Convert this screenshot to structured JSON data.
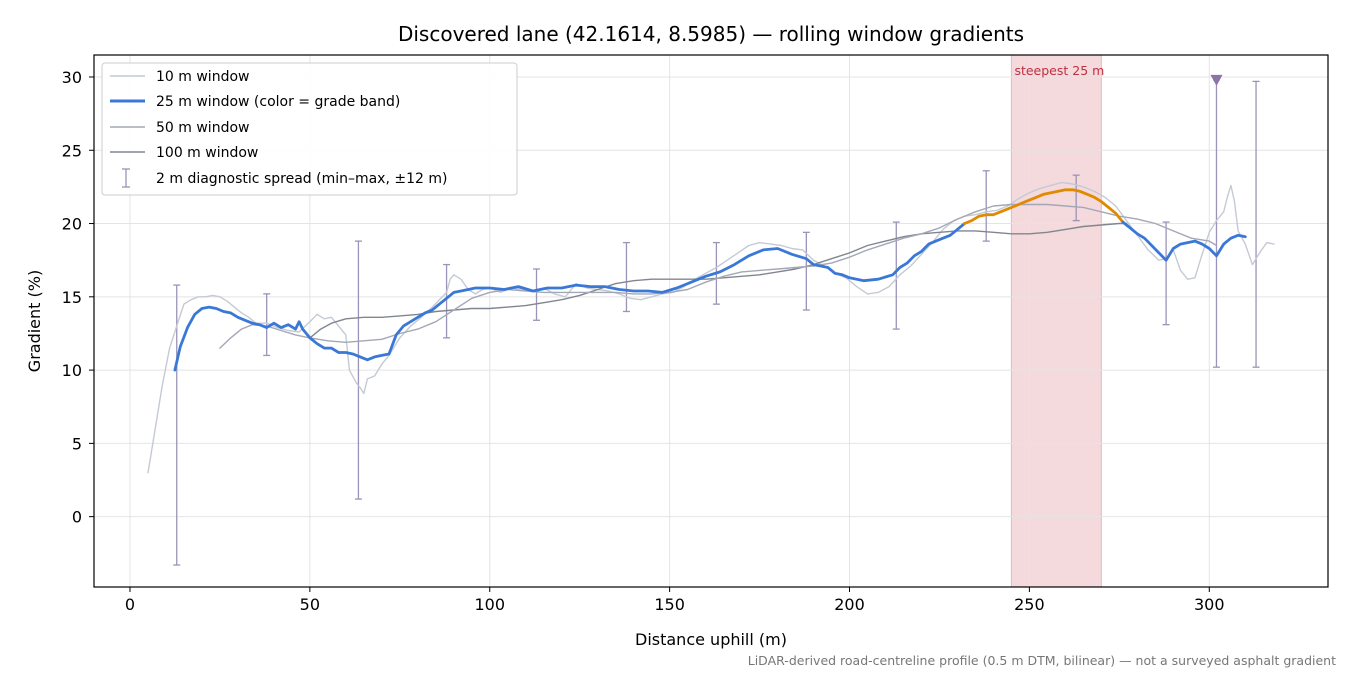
{
  "chart_data": {
    "type": "line",
    "title": "Discovered lane (42.1614, 8.5985) — rolling window gradients",
    "xlabel": "Distance uphill (m)",
    "ylabel": "Gradient (%)",
    "footnote": "LiDAR-derived road-centreline profile (0.5 m DTM, bilinear) — not a surveyed asphalt gradient",
    "xlim": [
      -10,
      333
    ],
    "ylim": [
      -4.8,
      31.5
    ],
    "x_ticks": [
      0,
      50,
      100,
      150,
      200,
      250,
      300
    ],
    "y_ticks": [
      0,
      5,
      10,
      15,
      20,
      25,
      30
    ],
    "grid": true,
    "legend_position": "upper-left",
    "steepest_band": {
      "label": "steepest 25 m",
      "x_start": 245,
      "x_end": 270
    },
    "marker_triangle": {
      "x": 302,
      "y": 29.8
    },
    "colors": {
      "w10": "#c4cad4",
      "w25": "#3a78d8",
      "w25_steep": "#e08a00",
      "w50": "#a4a8b6",
      "w100": "#808690",
      "err": "#9b93b8",
      "band": "#f4d9dd",
      "marker": "#8c75a6"
    },
    "series": [
      {
        "name": "10 m window",
        "x": [
          5,
          7,
          9,
          11,
          13,
          15,
          17,
          19,
          21,
          23,
          25,
          27,
          29,
          31,
          33,
          35,
          38,
          41,
          44,
          47,
          50,
          52,
          54,
          56,
          58,
          60,
          61,
          63,
          64,
          65,
          66,
          68,
          70,
          72,
          75,
          78,
          81,
          84,
          86,
          88,
          89,
          90,
          92,
          94,
          96,
          98,
          100,
          103,
          106,
          109,
          112,
          115,
          118,
          121,
          124,
          127,
          130,
          133,
          136,
          139,
          142,
          145,
          148,
          151,
          154,
          157,
          160,
          163,
          166,
          169,
          172,
          175,
          178,
          181,
          184,
          187,
          190,
          193,
          196,
          199,
          202,
          205,
          208,
          211,
          214,
          217,
          220,
          223,
          226,
          229,
          232,
          235,
          238,
          241,
          244,
          247,
          250,
          253,
          256,
          259,
          262,
          265,
          268,
          271,
          274,
          277,
          280,
          283,
          286,
          288,
          290,
          292,
          294,
          296,
          298,
          300,
          302,
          304,
          305,
          306,
          307,
          308,
          310,
          312,
          314,
          316,
          318
        ],
        "y": [
          3,
          6,
          9,
          11.5,
          13,
          14.5,
          14.8,
          15,
          15,
          15.1,
          15,
          14.7,
          14.3,
          13.9,
          13.6,
          13.2,
          13.2,
          12.9,
          12.7,
          12.6,
          13.3,
          13.8,
          13.5,
          13.6,
          13.0,
          12.4,
          10.0,
          9.1,
          8.8,
          8.4,
          9.4,
          9.6,
          10.4,
          11.0,
          12.2,
          13.0,
          13.6,
          14.3,
          14.8,
          15.3,
          16.2,
          16.5,
          16.2,
          15.5,
          15.2,
          15.5,
          15.6,
          15.3,
          15.6,
          15.5,
          15.4,
          15.6,
          15.2,
          15.0,
          15.9,
          15.6,
          15.5,
          15.4,
          15.2,
          14.9,
          14.8,
          15.0,
          15.2,
          15.3,
          15.7,
          16.2,
          16.6,
          17.0,
          17.5,
          18.0,
          18.5,
          18.7,
          18.6,
          18.5,
          18.3,
          18.2,
          17.5,
          17.1,
          16.6,
          16.3,
          15.7,
          15.2,
          15.3,
          15.7,
          16.5,
          17.1,
          17.9,
          18.7,
          19.6,
          20.2,
          20.5,
          20.6,
          20.8,
          20.9,
          21.2,
          21.7,
          22.1,
          22.4,
          22.6,
          22.8,
          22.7,
          22.5,
          22.2,
          21.8,
          21.2,
          20.2,
          19.2,
          18.2,
          17.5,
          17.6,
          18.2,
          16.8,
          16.2,
          16.3,
          17.9,
          19.4,
          20.2,
          20.8,
          21.8,
          22.6,
          21.5,
          19.5,
          18.6,
          17.2,
          18.0,
          18.7,
          18.6
        ]
      },
      {
        "name": "25 m window (color = grade band)",
        "x": [
          12.5,
          14,
          16,
          18,
          20,
          22,
          24,
          26,
          28,
          30,
          32,
          34,
          36,
          38,
          40,
          42,
          44,
          46,
          47,
          48,
          50,
          52,
          54,
          56,
          58,
          60,
          62,
          64,
          66,
          68,
          70,
          72,
          74,
          76,
          78,
          80,
          82,
          84,
          86,
          88,
          90,
          92,
          94,
          96,
          98,
          100,
          104,
          108,
          112,
          116,
          120,
          124,
          128,
          132,
          136,
          140,
          144,
          148,
          152,
          156,
          160,
          164,
          168,
          172,
          176,
          180,
          184,
          188,
          190,
          192,
          194,
          196,
          198,
          200,
          204,
          208,
          212,
          214,
          216,
          218,
          220,
          222,
          224,
          226,
          228,
          230,
          232
        ],
        "y": [
          10,
          11.6,
          12.9,
          13.8,
          14.2,
          14.3,
          14.2,
          14.0,
          13.9,
          13.6,
          13.4,
          13.2,
          13.1,
          12.9,
          13.2,
          12.9,
          13.1,
          12.8,
          13.3,
          12.8,
          12.2,
          11.8,
          11.5,
          11.5,
          11.2,
          11.2,
          11.1,
          10.9,
          10.7,
          10.9,
          11.0,
          11.1,
          12.4,
          13.0,
          13.3,
          13.6,
          13.9,
          14.1,
          14.5,
          14.9,
          15.3,
          15.4,
          15.5,
          15.6,
          15.6,
          15.6,
          15.5,
          15.7,
          15.4,
          15.6,
          15.6,
          15.8,
          15.7,
          15.7,
          15.5,
          15.4,
          15.4,
          15.3,
          15.6,
          16.0,
          16.4,
          16.7,
          17.2,
          17.8,
          18.2,
          18.3,
          17.9,
          17.6,
          17.2,
          17.1,
          17.0,
          16.6,
          16.5,
          16.3,
          16.1,
          16.2,
          16.5,
          17.0,
          17.3,
          17.8,
          18.1,
          18.6,
          18.8,
          19.0,
          19.2,
          19.6,
          20.0
        ]
      },
      {
        "name": "25 m window steep segment",
        "x": [
          232,
          234,
          236,
          238,
          240,
          242,
          244,
          246,
          248,
          250,
          252,
          254,
          256,
          258,
          260,
          262,
          264,
          266,
          268,
          270,
          272,
          274,
          276
        ],
        "y": [
          20.0,
          20.2,
          20.5,
          20.6,
          20.6,
          20.8,
          21.0,
          21.2,
          21.4,
          21.6,
          21.8,
          22.0,
          22.1,
          22.2,
          22.3,
          22.3,
          22.2,
          22.0,
          21.8,
          21.5,
          21.1,
          20.7,
          20.1
        ]
      },
      {
        "name": "25 m window (tail)",
        "x": [
          276,
          278,
          280,
          282,
          284,
          286,
          288,
          290,
          292,
          294,
          296,
          298,
          300,
          302,
          304,
          306,
          308,
          310
        ],
        "y": [
          20.1,
          19.7,
          19.3,
          19.0,
          18.5,
          18.0,
          17.5,
          18.3,
          18.6,
          18.7,
          18.8,
          18.6,
          18.3,
          17.8,
          18.6,
          19.0,
          19.2,
          19.1
        ]
      },
      {
        "name": "50 m window",
        "x": [
          25,
          28,
          31,
          34,
          38,
          42,
          46,
          50,
          55,
          60,
          65,
          70,
          75,
          80,
          85,
          90,
          95,
          100,
          105,
          110,
          115,
          120,
          125,
          130,
          135,
          140,
          145,
          150,
          155,
          160,
          165,
          170,
          175,
          180,
          185,
          190,
          195,
          200,
          205,
          210,
          215,
          220,
          225,
          230,
          235,
          240,
          245,
          250,
          255,
          260,
          265,
          270,
          275,
          280,
          285,
          290,
          295,
          300,
          302
        ],
        "y": [
          11.5,
          12.2,
          12.8,
          13.1,
          13.0,
          12.7,
          12.4,
          12.2,
          12.0,
          11.9,
          12.0,
          12.1,
          12.5,
          12.8,
          13.3,
          14.1,
          14.9,
          15.3,
          15.5,
          15.4,
          15.3,
          15.3,
          15.3,
          15.3,
          15.3,
          15.2,
          15.2,
          15.3,
          15.5,
          16.0,
          16.4,
          16.7,
          16.8,
          16.9,
          17.0,
          17.1,
          17.3,
          17.7,
          18.2,
          18.6,
          19.0,
          19.3,
          19.7,
          20.3,
          20.8,
          21.2,
          21.3,
          21.3,
          21.3,
          21.2,
          21.1,
          20.8,
          20.5,
          20.3,
          20.0,
          19.5,
          19.0,
          18.8,
          18.5
        ]
      },
      {
        "name": "100 m window",
        "x": [
          50,
          53,
          56,
          60,
          65,
          70,
          75,
          80,
          85,
          90,
          95,
          100,
          105,
          110,
          115,
          120,
          125,
          130,
          135,
          140,
          145,
          150,
          155,
          160,
          165,
          170,
          175,
          180,
          185,
          190,
          195,
          200,
          205,
          210,
          215,
          220,
          225,
          230,
          235,
          240,
          245,
          250,
          255,
          260,
          265,
          270,
          275,
          277
        ],
        "y": [
          12.2,
          12.8,
          13.2,
          13.5,
          13.6,
          13.6,
          13.7,
          13.8,
          14.0,
          14.1,
          14.2,
          14.2,
          14.3,
          14.4,
          14.6,
          14.8,
          15.1,
          15.5,
          15.9,
          16.1,
          16.2,
          16.2,
          16.2,
          16.2,
          16.3,
          16.4,
          16.5,
          16.7,
          16.9,
          17.2,
          17.6,
          18.0,
          18.5,
          18.8,
          19.1,
          19.3,
          19.4,
          19.5,
          19.5,
          19.4,
          19.3,
          19.3,
          19.4,
          19.6,
          19.8,
          19.9,
          20.0,
          20.0
        ]
      },
      {
        "name": "2 m diagnostic spread (min–max, ±12 m)",
        "errorbars": [
          {
            "x": 13,
            "min": -3.3,
            "max": 15.8
          },
          {
            "x": 38,
            "min": 11.0,
            "max": 15.2
          },
          {
            "x": 63.5,
            "min": 1.2,
            "max": 18.8
          },
          {
            "x": 88,
            "min": 12.2,
            "max": 17.2
          },
          {
            "x": 113,
            "min": 13.4,
            "max": 16.9
          },
          {
            "x": 138,
            "min": 14.0,
            "max": 18.7
          },
          {
            "x": 163,
            "min": 14.5,
            "max": 18.7
          },
          {
            "x": 188,
            "min": 14.1,
            "max": 19.4
          },
          {
            "x": 213,
            "min": 12.8,
            "max": 20.1
          },
          {
            "x": 238,
            "min": 18.8,
            "max": 23.6
          },
          {
            "x": 263,
            "min": 20.2,
            "max": 23.3
          },
          {
            "x": 288,
            "min": 13.1,
            "max": 20.1
          },
          {
            "x": 302,
            "min": 10.2,
            "max": 29.8
          },
          {
            "x": 313,
            "min": 10.2,
            "max": 29.7
          }
        ]
      }
    ]
  }
}
